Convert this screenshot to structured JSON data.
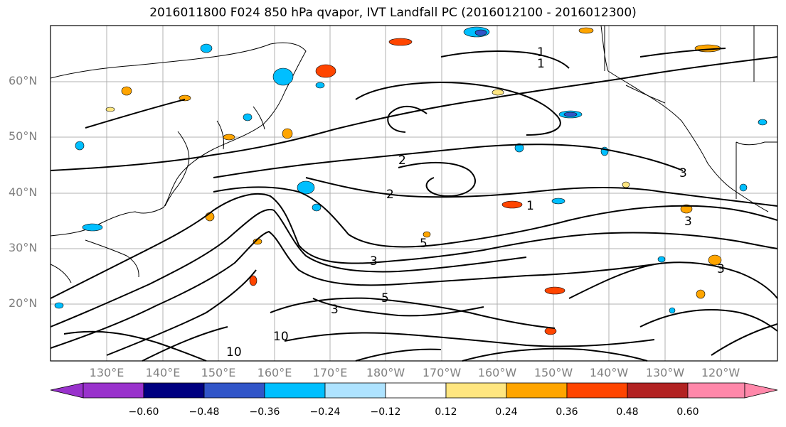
{
  "title": "2016011800 F024 850 hPa qvapor, IVT Landfall PC (2016012100 - 2016012300)",
  "map": {
    "lat_labels": [
      "60°N",
      "50°N",
      "40°N",
      "30°N",
      "20°N"
    ],
    "lon_labels": [
      "130°E",
      "140°E",
      "150°E",
      "160°E",
      "170°E",
      "180°W",
      "170°W",
      "160°W",
      "150°W",
      "140°W",
      "130°W",
      "120°W"
    ],
    "contour_labels": [
      "1",
      "1",
      "2",
      "2",
      "3",
      "3",
      "3",
      "3",
      "3",
      "5",
      "5",
      "1",
      "10",
      "10"
    ]
  },
  "colorbar": {
    "colors": [
      "#9932cc",
      "#000080",
      "#3155c8",
      "#00bfff",
      "#aee3ff",
      "#ffffff",
      "#ffe680",
      "#ffa500",
      "#ff4500",
      "#b22222",
      "#ff88aa"
    ],
    "tick_labels": [
      "−0.60",
      "−0.48",
      "−0.36",
      "−0.24",
      "−0.12",
      "0.12",
      "0.24",
      "0.36",
      "0.48",
      "0.60"
    ]
  }
}
